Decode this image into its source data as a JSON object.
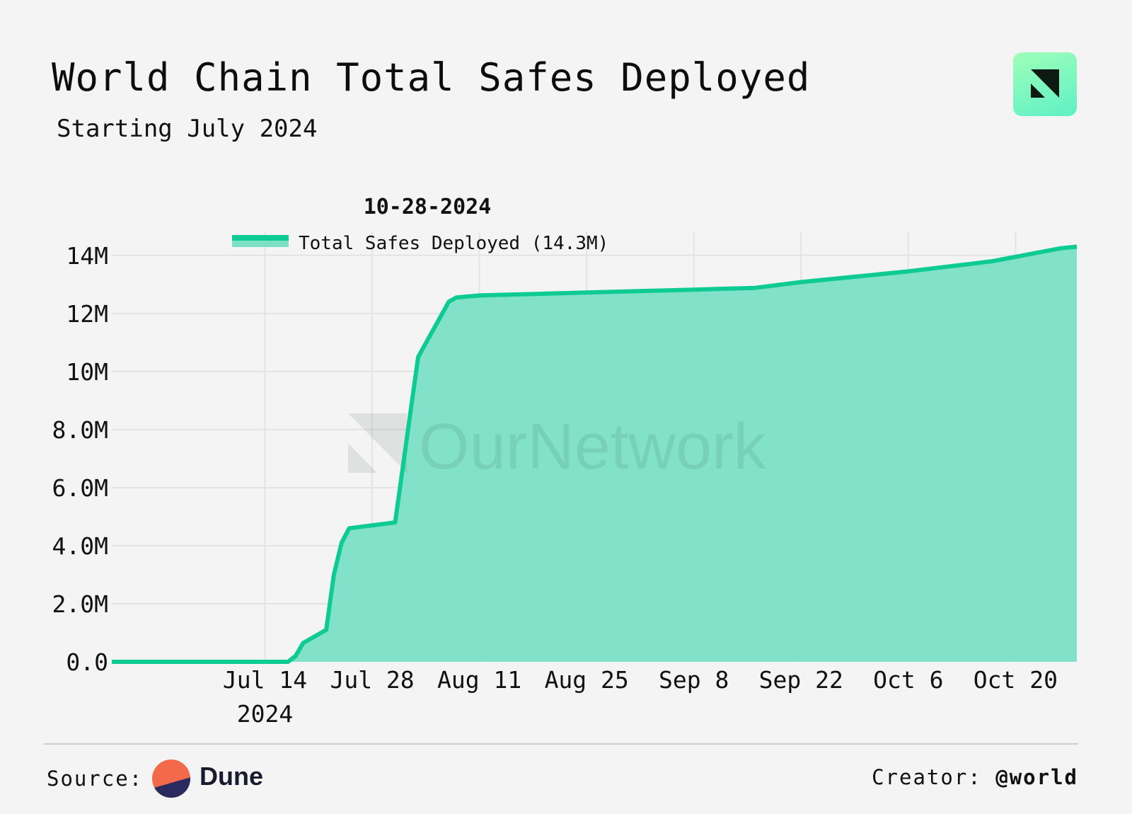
{
  "header": {
    "title": "World Chain Total Safes Deployed",
    "subtitle": "Starting July 2024",
    "logo_icon": "ournetwork-logo-icon"
  },
  "chart_data": {
    "type": "area",
    "title": "World Chain Total Safes Deployed",
    "subtitle": "Starting July 2024",
    "hover_date": "10-28-2024",
    "legend": "Total Safes Deployed (14.3M)",
    "legend_placement": "top-left",
    "watermark": "OurNetwork",
    "line_color": "#0ecb93",
    "fill_color": "#7be0c6",
    "x_start": "2024-06-24",
    "x_end": "2024-10-28",
    "x_ticks": [
      {
        "date": "2024-07-14",
        "label": "Jul 14",
        "sublabel": "2024"
      },
      {
        "date": "2024-07-28",
        "label": "Jul 28"
      },
      {
        "date": "2024-08-11",
        "label": "Aug 11"
      },
      {
        "date": "2024-08-25",
        "label": "Aug 25"
      },
      {
        "date": "2024-09-08",
        "label": "Sep 8"
      },
      {
        "date": "2024-09-22",
        "label": "Sep 22"
      },
      {
        "date": "2024-10-06",
        "label": "Oct 6"
      },
      {
        "date": "2024-10-20",
        "label": "Oct 20"
      }
    ],
    "y_ticks": [
      {
        "value": 0,
        "label": "0.0"
      },
      {
        "value": 2000000,
        "label": "2.0M"
      },
      {
        "value": 4000000,
        "label": "4.0M"
      },
      {
        "value": 6000000,
        "label": "6.0M"
      },
      {
        "value": 8000000,
        "label": "8.0M"
      },
      {
        "value": 10000000,
        "label": "10M"
      },
      {
        "value": 12000000,
        "label": "12M"
      },
      {
        "value": 14000000,
        "label": "14M"
      }
    ],
    "ylim": [
      0,
      14800000
    ],
    "series": [
      {
        "name": "Total Safes Deployed",
        "points": [
          {
            "date": "2024-06-24",
            "value": 0
          },
          {
            "date": "2024-07-17",
            "value": 0
          },
          {
            "date": "2024-07-18",
            "value": 200000
          },
          {
            "date": "2024-07-19",
            "value": 650000
          },
          {
            "date": "2024-07-22",
            "value": 1100000
          },
          {
            "date": "2024-07-23",
            "value": 3000000
          },
          {
            "date": "2024-07-24",
            "value": 4100000
          },
          {
            "date": "2024-07-25",
            "value": 4600000
          },
          {
            "date": "2024-07-31",
            "value": 4800000
          },
          {
            "date": "2024-08-03",
            "value": 10500000
          },
          {
            "date": "2024-08-07",
            "value": 12400000
          },
          {
            "date": "2024-08-08",
            "value": 12550000
          },
          {
            "date": "2024-08-11",
            "value": 12620000
          },
          {
            "date": "2024-08-25",
            "value": 12720000
          },
          {
            "date": "2024-09-08",
            "value": 12820000
          },
          {
            "date": "2024-09-16",
            "value": 12880000
          },
          {
            "date": "2024-09-22",
            "value": 13080000
          },
          {
            "date": "2024-10-06",
            "value": 13450000
          },
          {
            "date": "2024-10-17",
            "value": 13800000
          },
          {
            "date": "2024-10-26",
            "value": 14250000
          },
          {
            "date": "2024-10-28",
            "value": 14300000
          }
        ]
      }
    ]
  },
  "footer": {
    "source_label": "Source:",
    "source_name": "Dune",
    "creator_label": "Creator:",
    "creator_handle": "@world"
  }
}
